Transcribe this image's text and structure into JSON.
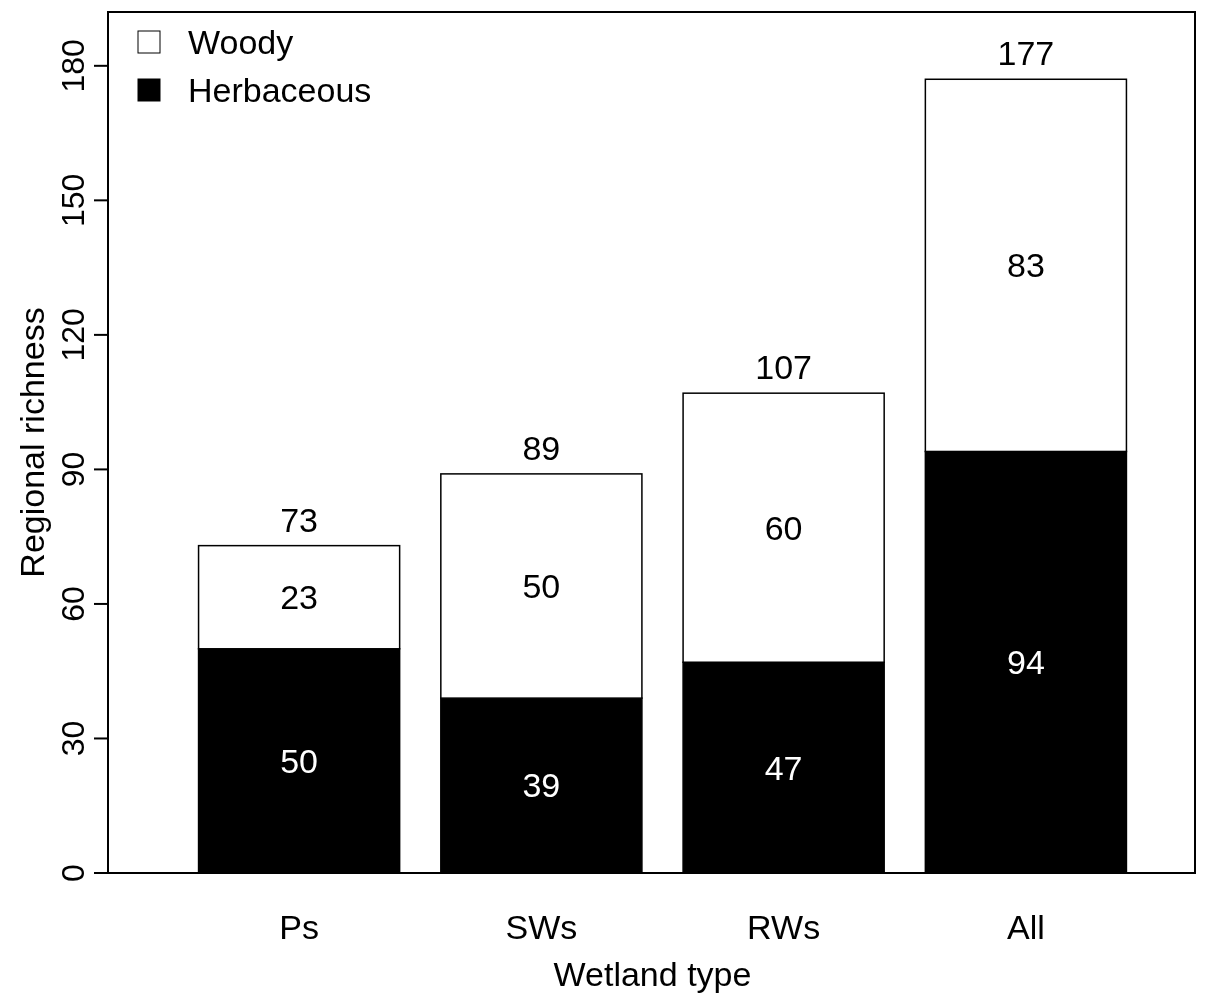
{
  "chart_data": {
    "type": "bar",
    "stacked": true,
    "xlabel": "Wetland type",
    "ylabel": "Regional richness",
    "categories": [
      "Ps",
      "SWs",
      "RWs",
      "All"
    ],
    "series": [
      {
        "name": "Herbaceous",
        "color": "#000000",
        "values": [
          50,
          39,
          47,
          94
        ]
      },
      {
        "name": "Woody",
        "color": "#ffffff",
        "values": [
          23,
          50,
          60,
          83
        ]
      }
    ],
    "ylim": [
      0,
      192
    ],
    "yticks": [
      0,
      30,
      60,
      90,
      120,
      150,
      180
    ],
    "data_labels": true,
    "totals": [
      "73",
      "89",
      "107",
      "177"
    ],
    "legend": "top left",
    "grid": false
  }
}
